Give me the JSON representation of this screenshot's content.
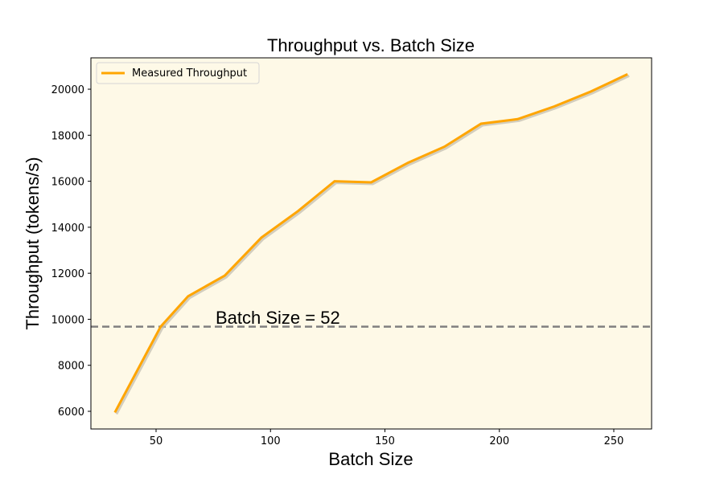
{
  "chart_data": {
    "type": "line",
    "title": "Throughput vs. Batch Size",
    "xlabel": "Batch Size",
    "ylabel": "Throughput (tokens/s)",
    "xlim": [
      22,
      266
    ],
    "ylim": [
      5250,
      21400
    ],
    "xticks": [
      50,
      100,
      150,
      200,
      250
    ],
    "yticks": [
      6000,
      8000,
      10000,
      12000,
      14000,
      16000,
      18000,
      20000
    ],
    "grid": false,
    "legend_position": "upper left",
    "background_color": "#fef9e7",
    "series": [
      {
        "name": "Measured Throughput",
        "color": "#ffa500",
        "shadow": true,
        "x": [
          32,
          52,
          64,
          80,
          96,
          112,
          128,
          144,
          160,
          176,
          192,
          208,
          224,
          240,
          256
        ],
        "y": [
          5950,
          9680,
          11000,
          11900,
          13550,
          14700,
          16000,
          15950,
          16800,
          17500,
          18500,
          18700,
          19250,
          19900,
          20650
        ]
      }
    ],
    "annotations": [
      {
        "type": "hline",
        "y": 9680,
        "style": "dashed",
        "color": "#808080",
        "label": "Batch Size = 52",
        "label_x": 75
      }
    ]
  }
}
